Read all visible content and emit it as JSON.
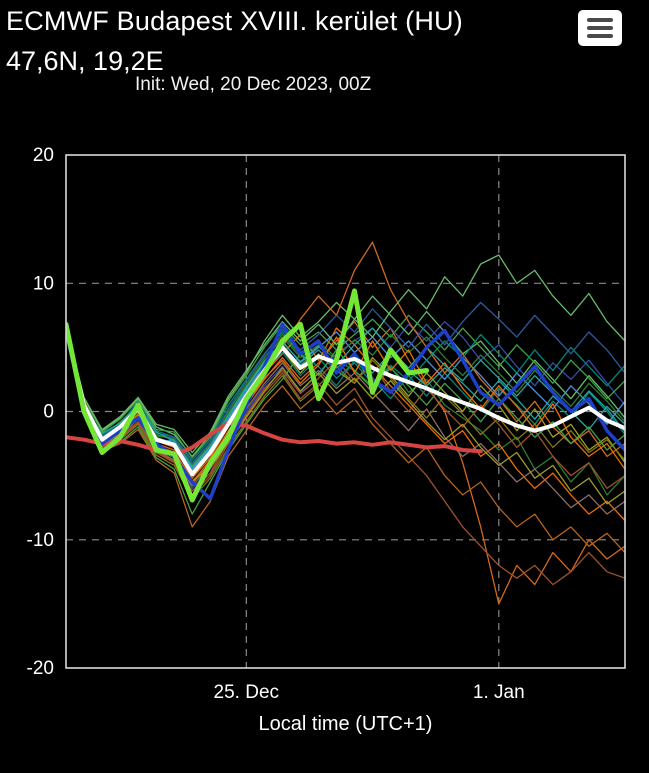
{
  "header": {
    "title": "ECMWF Budapest XVIII. kerület (HU)",
    "coords": "47,6N, 19,2E",
    "init": "Init: Wed, 20 Dec 2023, 00Z"
  },
  "menu": {
    "icon_name": "hamburger-menu-icon"
  },
  "colors": {
    "background": "#000000",
    "frame": "#d9d9d9",
    "grid": "#8a8a8a",
    "mean_line": "#ffffff",
    "hres_line": "#74e635",
    "control_line": "#1e40c8",
    "climatology_line": "#d64541"
  },
  "chart_data": {
    "type": "line",
    "title": "",
    "xlabel": "Local time (UTC+1)",
    "ylabel": "",
    "ylim": [
      -20,
      20
    ],
    "yticks": [
      20,
      10,
      0,
      -10,
      -20
    ],
    "x_range_days": [
      0,
      15.5
    ],
    "x_step_days": 0.5,
    "xticks": [
      {
        "t": 5,
        "label": "25. Dec"
      },
      {
        "t": 12,
        "label": "1. Jan"
      }
    ],
    "grid": {
      "h_values": [
        10,
        0,
        -10
      ],
      "v_values": [
        5,
        12
      ],
      "style": "dashed"
    },
    "legend": "none",
    "main_series": [
      {
        "name": "climatology-red-line",
        "color": "#d64541",
        "width": 4,
        "values": [
          -2.0,
          -2.2,
          -2.5,
          -2.3,
          -2.6,
          -3.0,
          -3.4,
          -2.8,
          -1.8,
          -0.9,
          -1.1,
          -1.7,
          -2.2,
          -2.4,
          -2.3,
          -2.5,
          -2.4,
          -2.6,
          -2.4,
          -2.6,
          -2.8,
          -2.7,
          -3.0,
          -3.1,
          null,
          null,
          null,
          null,
          null,
          null,
          null,
          null
        ]
      },
      {
        "name": "control-blue-line",
        "color": "#1e40c8",
        "width": 3.5,
        "values": [
          6.3,
          0.0,
          -2.5,
          -1.5,
          -0.5,
          -2.5,
          -3.5,
          -5.5,
          -6.8,
          -3.0,
          0.5,
          3.5,
          6.8,
          4.5,
          5.5,
          3.0,
          4.5,
          2.5,
          1.5,
          3.0,
          5.0,
          6.3,
          4.0,
          1.5,
          0.5,
          2.0,
          3.5,
          1.5,
          0.0,
          1.0,
          -1.5,
          -3.0
        ]
      },
      {
        "name": "ensemble-mean-white-line",
        "color": "#ffffff",
        "width": 4,
        "values": [
          6.5,
          0.5,
          -2.2,
          -1.2,
          0.2,
          -2.2,
          -2.6,
          -4.9,
          -3.2,
          -1.0,
          1.2,
          3.2,
          5.0,
          3.4,
          4.3,
          3.8,
          4.1,
          3.4,
          2.8,
          2.3,
          1.8,
          1.2,
          0.7,
          0.2,
          -0.5,
          -1.1,
          -1.5,
          -1.1,
          -0.4,
          0.3,
          -0.7,
          -1.3
        ]
      },
      {
        "name": "hres-green-line",
        "color": "#74e635",
        "width": 5,
        "values": [
          6.8,
          0.0,
          -3.2,
          -2.0,
          0.5,
          -3.0,
          -3.3,
          -6.9,
          -4.0,
          -2.0,
          1.0,
          3.0,
          5.5,
          6.8,
          1.0,
          4.0,
          9.4,
          1.5,
          4.8,
          3.0,
          3.2,
          null,
          null,
          null,
          null,
          null,
          null,
          null,
          null,
          null,
          null,
          null
        ]
      }
    ],
    "members": [
      {
        "color": "#2e7d32",
        "values": [
          6.4,
          0.2,
          -2.0,
          -0.8,
          0.5,
          -1.8,
          -2.2,
          -4.2,
          -2.6,
          -0.2,
          2.0,
          4.0,
          5.8,
          4.2,
          5.2,
          4.0,
          3.2,
          2.0,
          3.5,
          1.5,
          2.5,
          0.5,
          -0.5,
          -1.5,
          -3.0,
          -2.0,
          -4.5,
          -3.5,
          -5.5,
          -4.0,
          -6.5,
          -5.0
        ]
      },
      {
        "color": "#d2691e",
        "values": [
          6.6,
          0.8,
          -2.5,
          -1.5,
          0.0,
          -2.5,
          -3.0,
          -5.5,
          -3.8,
          -1.5,
          0.5,
          2.5,
          4.2,
          2.5,
          3.8,
          5.5,
          7.0,
          5.0,
          6.5,
          4.0,
          2.0,
          0.0,
          -4.0,
          -9.0,
          -15.0,
          -12.0,
          -13.5,
          -11.0,
          -12.5,
          -10.0,
          -11.5,
          -10.5
        ]
      },
      {
        "color": "#00897b",
        "values": [
          6.3,
          0.0,
          -1.8,
          -1.0,
          0.8,
          -1.5,
          -2.0,
          -3.8,
          -2.2,
          0.5,
          2.5,
          4.5,
          6.2,
          4.5,
          3.5,
          2.0,
          4.0,
          2.5,
          1.0,
          2.8,
          1.2,
          3.0,
          1.5,
          0.0,
          1.8,
          0.5,
          -1.0,
          0.8,
          -0.5,
          1.5,
          0.0,
          -1.8
        ]
      },
      {
        "color": "#3949ab",
        "values": [
          6.5,
          0.5,
          -2.3,
          -1.8,
          -0.5,
          -2.8,
          -3.5,
          -6.0,
          -4.5,
          -2.0,
          0.0,
          2.0,
          3.5,
          1.5,
          3.0,
          4.5,
          5.5,
          6.5,
          5.0,
          6.8,
          5.5,
          7.0,
          5.8,
          4.0,
          5.2,
          3.5,
          2.0,
          3.8,
          2.5,
          4.0,
          2.2,
          0.5
        ]
      },
      {
        "color": "#9e9d24",
        "values": [
          6.4,
          0.3,
          -2.1,
          -1.2,
          0.3,
          -2.0,
          -2.5,
          -4.6,
          -3.0,
          -0.8,
          1.5,
          3.5,
          4.8,
          3.0,
          4.5,
          3.2,
          2.2,
          4.2,
          2.8,
          1.2,
          3.0,
          1.5,
          0.0,
          2.0,
          0.5,
          -1.5,
          0.2,
          -2.0,
          -1.0,
          -3.0,
          -2.0,
          -4.0
        ]
      },
      {
        "color": "#66bb6a",
        "values": [
          6.7,
          1.0,
          -1.5,
          -0.5,
          1.0,
          -1.2,
          -1.8,
          -3.5,
          -1.8,
          1.0,
          3.0,
          5.5,
          7.5,
          5.8,
          7.0,
          8.5,
          7.2,
          9.0,
          7.5,
          6.0,
          7.8,
          6.2,
          4.5,
          5.5,
          3.8,
          2.2,
          4.0,
          2.5,
          1.0,
          2.8,
          1.2,
          -0.5
        ]
      },
      {
        "color": "#a0522d",
        "values": [
          6.2,
          -0.2,
          -2.8,
          -2.0,
          -0.8,
          -3.2,
          -4.0,
          -6.5,
          -5.0,
          -2.5,
          -0.5,
          1.5,
          3.0,
          1.0,
          2.2,
          0.5,
          1.8,
          -0.5,
          -2.0,
          -3.5,
          -5.0,
          -7.0,
          -9.0,
          -10.5,
          -12.0,
          -13.0,
          -12.0,
          -13.5,
          -12.5,
          -11.0,
          -12.5,
          -13.0
        ]
      },
      {
        "color": "#26a69a",
        "values": [
          6.4,
          0.4,
          -2.0,
          -1.4,
          0.1,
          -2.4,
          -2.2,
          -4.4,
          -2.8,
          -0.5,
          1.8,
          3.8,
          5.2,
          3.6,
          4.8,
          3.4,
          4.4,
          3.0,
          4.6,
          3.2,
          2.0,
          3.4,
          2.2,
          0.8,
          2.4,
          1.0,
          -0.6,
          1.2,
          0.0,
          -1.4,
          0.4,
          -1.0
        ]
      },
      {
        "color": "#ef6c00",
        "values": [
          6.5,
          0.6,
          -2.4,
          -1.6,
          -0.2,
          -2.6,
          -3.2,
          -5.2,
          -3.6,
          -1.2,
          1.0,
          3.0,
          4.5,
          6.0,
          4.0,
          6.5,
          5.2,
          3.5,
          2.0,
          0.5,
          -1.0,
          -2.5,
          -1.5,
          -3.5,
          -2.5,
          -4.5,
          -6.0,
          -4.8,
          -6.5,
          -8.0,
          -7.0,
          -8.5
        ]
      },
      {
        "color": "#43a047",
        "values": [
          6.6,
          0.9,
          -1.6,
          -0.6,
          0.9,
          -1.4,
          -1.6,
          -3.6,
          -2.0,
          0.8,
          2.8,
          5.0,
          6.8,
          5.2,
          6.2,
          4.8,
          6.0,
          7.2,
          5.8,
          7.5,
          6.2,
          4.8,
          6.5,
          5.0,
          3.5,
          5.2,
          3.8,
          2.2,
          4.0,
          2.6,
          1.0,
          2.4
        ]
      },
      {
        "color": "#8d6e63",
        "values": [
          6.3,
          0.1,
          -2.6,
          -1.9,
          -0.6,
          -3.0,
          -3.8,
          -5.8,
          -4.2,
          -1.8,
          0.2,
          2.2,
          3.8,
          2.0,
          3.2,
          1.8,
          3.0,
          1.5,
          0.0,
          -1.5,
          0.2,
          -2.0,
          -3.5,
          -2.5,
          -4.0,
          -5.5,
          -4.5,
          -6.0,
          -7.5,
          -6.5,
          -8.0,
          -7.0
        ]
      },
      {
        "color": "#4f8fdd",
        "values": [
          6.4,
          0.5,
          -2.2,
          -1.3,
          0.4,
          -2.1,
          -2.4,
          -4.5,
          -2.9,
          -0.6,
          1.6,
          3.6,
          5.5,
          3.8,
          5.0,
          6.2,
          4.6,
          5.8,
          4.2,
          5.5,
          4.0,
          2.5,
          4.2,
          2.8,
          1.2,
          3.0,
          1.6,
          0.2,
          2.0,
          0.6,
          -1.0,
          0.8
        ]
      },
      {
        "color": "#827717",
        "values": [
          6.2,
          -0.1,
          -2.9,
          -2.2,
          -1.0,
          -3.4,
          -4.2,
          -6.8,
          -5.2,
          -2.8,
          -0.8,
          1.2,
          2.8,
          0.8,
          2.0,
          3.5,
          2.2,
          4.0,
          2.6,
          1.0,
          -0.5,
          1.2,
          -0.2,
          -1.8,
          -0.5,
          -2.2,
          -1.0,
          -2.8,
          -1.5,
          -3.2,
          -2.2,
          -3.8
        ]
      },
      {
        "color": "#2e7d32",
        "values": [
          6.5,
          0.7,
          -1.9,
          -1.1,
          0.6,
          -1.9,
          -2.1,
          -4.1,
          -2.5,
          0.0,
          2.2,
          4.2,
          6.0,
          4.4,
          5.4,
          4.2,
          5.6,
          4.4,
          6.0,
          4.6,
          5.8,
          4.2,
          2.8,
          4.4,
          3.0,
          1.5,
          3.2,
          1.8,
          0.4,
          2.2,
          0.8,
          -0.8
        ]
      },
      {
        "color": "#d2691e",
        "values": [
          6.6,
          0.8,
          -2.3,
          -1.4,
          0.2,
          -2.3,
          -2.8,
          -5.0,
          -3.4,
          -1.0,
          1.2,
          3.4,
          5.0,
          7.2,
          9.0,
          7.5,
          11.0,
          13.2,
          9.5,
          7.0,
          5.0,
          3.0,
          4.5,
          2.5,
          1.0,
          -0.8,
          0.8,
          -1.2,
          -2.5,
          -1.5,
          -3.5,
          -2.5
        ]
      },
      {
        "color": "#00897b",
        "values": [
          6.3,
          0.2,
          -2.1,
          -1.5,
          0.0,
          -2.2,
          -2.7,
          -4.7,
          -3.1,
          -0.9,
          1.4,
          3.3,
          4.6,
          2.8,
          4.2,
          2.6,
          3.8,
          2.2,
          3.6,
          2.4,
          4.0,
          5.5,
          4.2,
          6.0,
          4.5,
          3.0,
          4.8,
          3.2,
          5.0,
          3.5,
          2.0,
          3.6
        ]
      },
      {
        "color": "#43a047",
        "values": [
          6.4,
          0.0,
          -3.0,
          -2.4,
          -1.2,
          -3.6,
          -4.5,
          -8.0,
          -5.5,
          -3.0,
          -1.0,
          1.0,
          2.5,
          4.5,
          2.8,
          4.8,
          3.2,
          1.8,
          3.4,
          2.0,
          0.5,
          2.2,
          0.8,
          -0.8,
          1.0,
          -0.5,
          -2.0,
          -0.8,
          -2.5,
          -1.2,
          -3.0,
          -1.8
        ]
      },
      {
        "color": "#a0522d",
        "values": [
          6.5,
          0.4,
          -2.7,
          -2.1,
          -0.9,
          -3.1,
          -3.9,
          -6.2,
          -4.8,
          -2.2,
          -0.2,
          1.8,
          3.2,
          1.4,
          2.6,
          4.0,
          2.4,
          3.6,
          1.6,
          0.0,
          1.8,
          0.2,
          -1.2,
          0.5,
          -1.0,
          -2.8,
          -1.5,
          -3.5,
          -5.0,
          -4.0,
          -6.0,
          -5.0
        ]
      },
      {
        "color": "#2c5aa0",
        "values": [
          6.4,
          0.6,
          -2.0,
          -1.0,
          0.7,
          -1.7,
          -2.0,
          -4.0,
          -2.4,
          0.2,
          2.4,
          4.4,
          6.4,
          4.8,
          6.0,
          7.5,
          6.2,
          8.0,
          6.5,
          5.0,
          6.8,
          5.2,
          7.0,
          8.5,
          7.2,
          5.8,
          7.5,
          6.0,
          4.5,
          6.2,
          4.8,
          3.0
        ]
      },
      {
        "color": "#66bb6a",
        "values": [
          6.6,
          1.1,
          -1.4,
          -0.4,
          1.1,
          -1.0,
          -1.4,
          -3.2,
          -1.6,
          1.2,
          3.2,
          5.2,
          7.0,
          5.5,
          6.8,
          5.2,
          7.2,
          5.8,
          7.8,
          9.5,
          8.0,
          10.5,
          9.0,
          11.5,
          12.2,
          10.0,
          11.0,
          9.0,
          7.5,
          9.2,
          7.0,
          5.5
        ]
      },
      {
        "color": "#ef6c00",
        "values": [
          6.5,
          0.5,
          -2.2,
          -1.7,
          -0.3,
          -2.7,
          -3.4,
          -5.6,
          -4.0,
          -1.6,
          0.6,
          2.6,
          4.0,
          2.2,
          3.6,
          5.8,
          3.0,
          5.5,
          3.2,
          4.8,
          2.2,
          3.8,
          1.8,
          0.2,
          2.0,
          0.4,
          -1.4,
          0.6,
          -2.0,
          -3.5,
          -2.5,
          -4.5
        ]
      },
      {
        "color": "#26a69a",
        "values": [
          6.4,
          0.3,
          -1.7,
          -0.9,
          0.5,
          -1.6,
          -2.3,
          -4.3,
          -2.7,
          -0.3,
          1.9,
          3.9,
          5.4,
          3.9,
          5.1,
          3.6,
          5.2,
          6.5,
          4.8,
          3.4,
          5.0,
          3.6,
          2.4,
          4.0,
          2.6,
          1.2,
          2.8,
          1.4,
          0.0,
          1.6,
          0.2,
          -1.6
        ]
      },
      {
        "color": "#9e9d24",
        "values": [
          6.3,
          0.1,
          -2.5,
          -1.8,
          -0.4,
          -2.9,
          -3.6,
          -5.4,
          -4.4,
          -2.4,
          -0.4,
          1.6,
          3.4,
          1.6,
          3.0,
          1.4,
          2.6,
          1.0,
          2.4,
          0.8,
          -0.8,
          -2.2,
          -1.0,
          -2.8,
          -4.2,
          -3.2,
          -5.2,
          -4.2,
          -6.2,
          -5.2,
          -7.2,
          -6.2
        ]
      },
      {
        "color": "#b5651d",
        "values": [
          6.2,
          -0.3,
          -3.1,
          -2.5,
          -1.4,
          -3.8,
          -4.8,
          -9.0,
          -7.0,
          -3.5,
          -1.5,
          0.5,
          2.0,
          0.2,
          1.4,
          -0.2,
          1.0,
          -1.0,
          -2.5,
          -4.0,
          -2.8,
          -5.0,
          -6.5,
          -5.5,
          -7.5,
          -9.0,
          -8.0,
          -10.0,
          -9.0,
          -10.5,
          -9.5,
          -11.0
        ]
      }
    ]
  }
}
